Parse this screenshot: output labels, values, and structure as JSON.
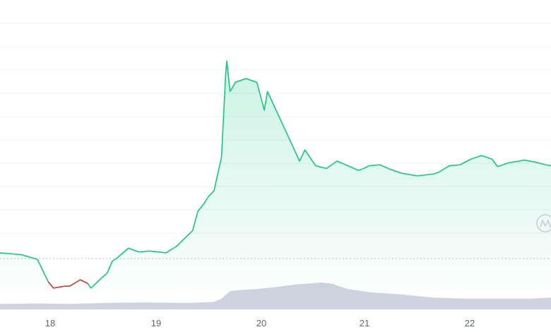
{
  "chart_data": {
    "type": "area",
    "x_tick_labels": [
      "18",
      "19",
      "20",
      "21",
      "22"
    ],
    "grid": true,
    "colors": {
      "up": "#16c784",
      "down": "#ea3943",
      "volume": "#cfd3e0",
      "grid": "#eef0f3"
    },
    "x_range": [
      17.55,
      22.7
    ],
    "baseline_value": 0,
    "y_range": [
      -2,
      30
    ],
    "price_series": {
      "x": [
        17.55,
        17.65,
        17.75,
        17.9,
        18.0,
        18.05,
        18.15,
        18.2,
        18.3,
        18.37,
        18.4,
        18.5,
        18.55,
        18.6,
        18.65,
        18.75,
        18.85,
        18.95,
        19.1,
        19.2,
        19.35,
        19.4,
        19.45,
        19.5,
        19.55,
        19.62,
        19.66,
        19.67,
        19.7,
        19.75,
        19.85,
        19.95,
        20.02,
        20.05,
        20.15,
        20.25,
        20.35,
        20.4,
        20.5,
        20.6,
        20.7,
        20.9,
        20.95,
        21.0,
        21.1,
        21.2,
        21.3,
        21.45,
        21.6,
        21.65,
        21.75,
        21.85,
        21.95,
        22.05,
        22.15,
        22.2,
        22.3,
        22.45,
        22.55,
        22.65,
        22.7
      ],
      "values": [
        4.1,
        4.0,
        3.9,
        3.4,
        1.0,
        0.3,
        0.5,
        0.5,
        1.2,
        0.8,
        0.3,
        1.4,
        1.9,
        3.2,
        3.6,
        4.6,
        4.2,
        4.3,
        4.1,
        4.8,
        6.5,
        8.6,
        9.3,
        10.2,
        10.8,
        14.4,
        23.5,
        24.8,
        21.5,
        22.5,
        22.9,
        22.5,
        19.5,
        21.5,
        19.0,
        16.5,
        14.0,
        15.2,
        13.5,
        13.2,
        14.0,
        13.0,
        13.2,
        13.5,
        13.6,
        13.1,
        12.7,
        12.4,
        12.6,
        12.8,
        13.5,
        13.6,
        14.2,
        14.6,
        14.2,
        13.4,
        13.8,
        14.1,
        13.9,
        13.6,
        13.5
      ],
      "down_segment": {
        "x": [
          18.0,
          18.05,
          18.15,
          18.2,
          18.3,
          18.37
        ],
        "values": [
          1.0,
          0.3,
          0.5,
          0.5,
          1.2,
          0.8
        ]
      }
    },
    "volume_series": {
      "x": [
        17.55,
        17.9,
        18.2,
        18.5,
        18.9,
        19.3,
        19.55,
        19.62,
        19.7,
        19.8,
        19.95,
        20.1,
        20.3,
        20.55,
        20.65,
        20.8,
        21.0,
        21.3,
        21.6,
        21.9,
        22.2,
        22.5,
        22.7
      ],
      "values": [
        1.0,
        1.1,
        1.0,
        1.2,
        1.3,
        1.2,
        1.4,
        2.0,
        3.4,
        3.6,
        3.8,
        4.1,
        4.6,
        5.0,
        4.8,
        3.8,
        3.2,
        2.8,
        2.2,
        2.0,
        2.0,
        2.0,
        2.2
      ]
    }
  }
}
